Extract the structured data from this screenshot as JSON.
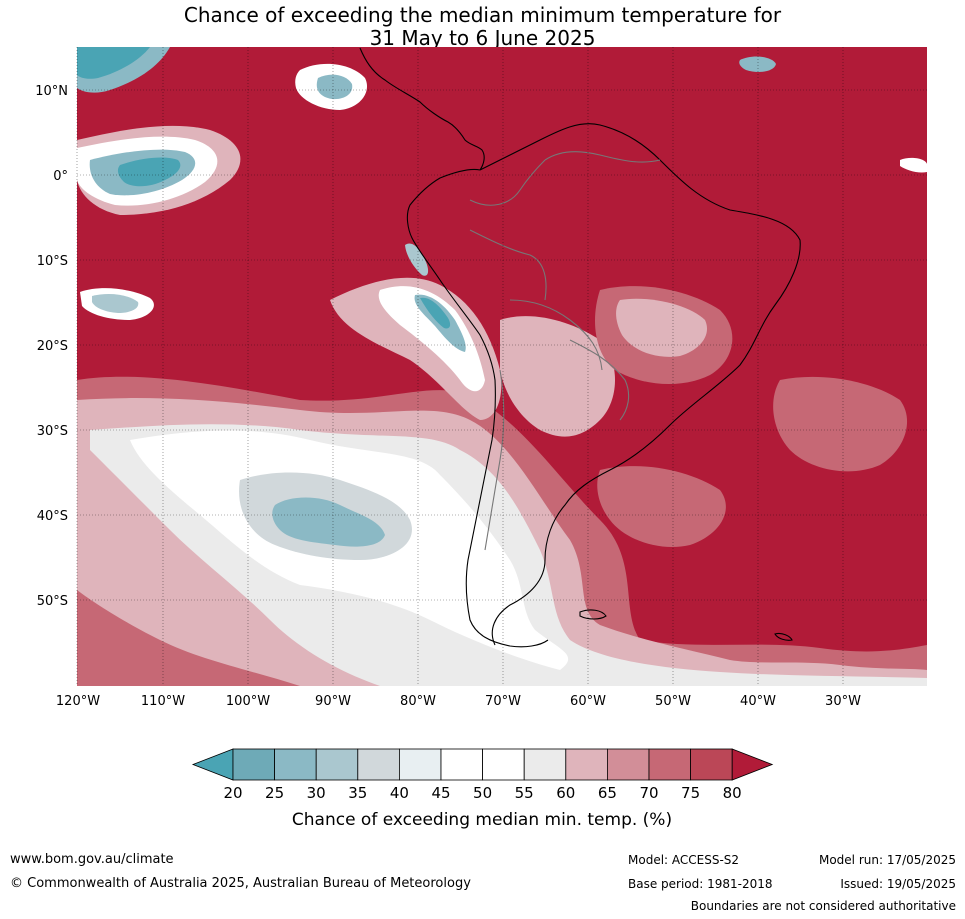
{
  "title_line1": "Chance of exceeding the median minimum temperature for",
  "title_line2": "31 May to 6 June 2025",
  "lat_labels": [
    "10°N",
    "0°",
    "10°S",
    "20°S",
    "30°S",
    "40°S",
    "50°S"
  ],
  "lon_labels": [
    "120°W",
    "110°W",
    "100°W",
    "90°W",
    "80°W",
    "70°W",
    "60°W",
    "50°W",
    "40°W",
    "30°W"
  ],
  "colorbar": {
    "ticks": [
      "20",
      "25",
      "30",
      "35",
      "40",
      "45",
      "50",
      "55",
      "60",
      "65",
      "70",
      "75",
      "80"
    ],
    "colors": [
      "#4aa4b4",
      "#6eaab7",
      "#8bb9c5",
      "#aac7cf",
      "#d1d8db",
      "#e8eff2",
      "#ffffff",
      "#ffffff",
      "#ebebeb",
      "#dfb4bb",
      "#d28e98",
      "#c66875",
      "#bb4757",
      "#b11b38"
    ],
    "label": "Chance of exceeding median min. temp. (%)"
  },
  "colors": {
    "high": "#b11b38",
    "mid_high": "#c66875",
    "light_pink": "#dfb4bb",
    "neutral": "#ebebeb",
    "white": "#ffffff",
    "light_blue": "#d1d8db",
    "blue": "#8bb9c5",
    "teal": "#4aa4b4"
  },
  "footer": {
    "website": "www.bom.gov.au/climate",
    "copyright": "© Commonwealth of Australia 2025, Australian Bureau of Meteorology",
    "model": "Model: ACCESS-S2",
    "base_period": "Base period: 1981-2018",
    "model_run": "Model run: 17/05/2025",
    "issued": "Issued: 19/05/2025",
    "disclaimer": "Boundaries are not considered authoritative"
  }
}
